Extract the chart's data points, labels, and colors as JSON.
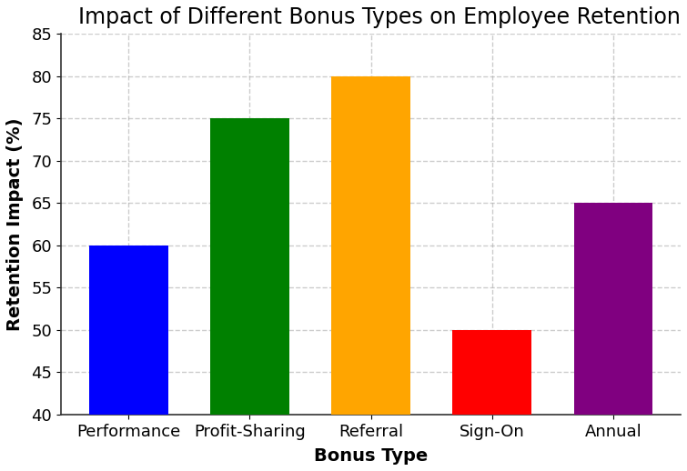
{
  "title": "Impact of Different Bonus Types on Employee Retention",
  "xlabel": "Bonus Type",
  "ylabel": "Retention Impact (%)",
  "categories": [
    "Performance",
    "Profit-Sharing",
    "Referral",
    "Sign-On",
    "Annual"
  ],
  "values": [
    60,
    75,
    80,
    50,
    65
  ],
  "bar_colors": [
    "#0000ff",
    "#008000",
    "#ffa500",
    "#ff0000",
    "#800080"
  ],
  "ylim": [
    40,
    85
  ],
  "yticks": [
    40,
    45,
    50,
    55,
    60,
    65,
    70,
    75,
    80,
    85
  ],
  "title_fontsize": 17,
  "label_fontsize": 14,
  "tick_fontsize": 13,
  "grid_color": "#aaaaaa",
  "grid_linestyle": "--",
  "grid_alpha": 0.6,
  "background_color": "#ffffff",
  "bar_width": 0.65
}
